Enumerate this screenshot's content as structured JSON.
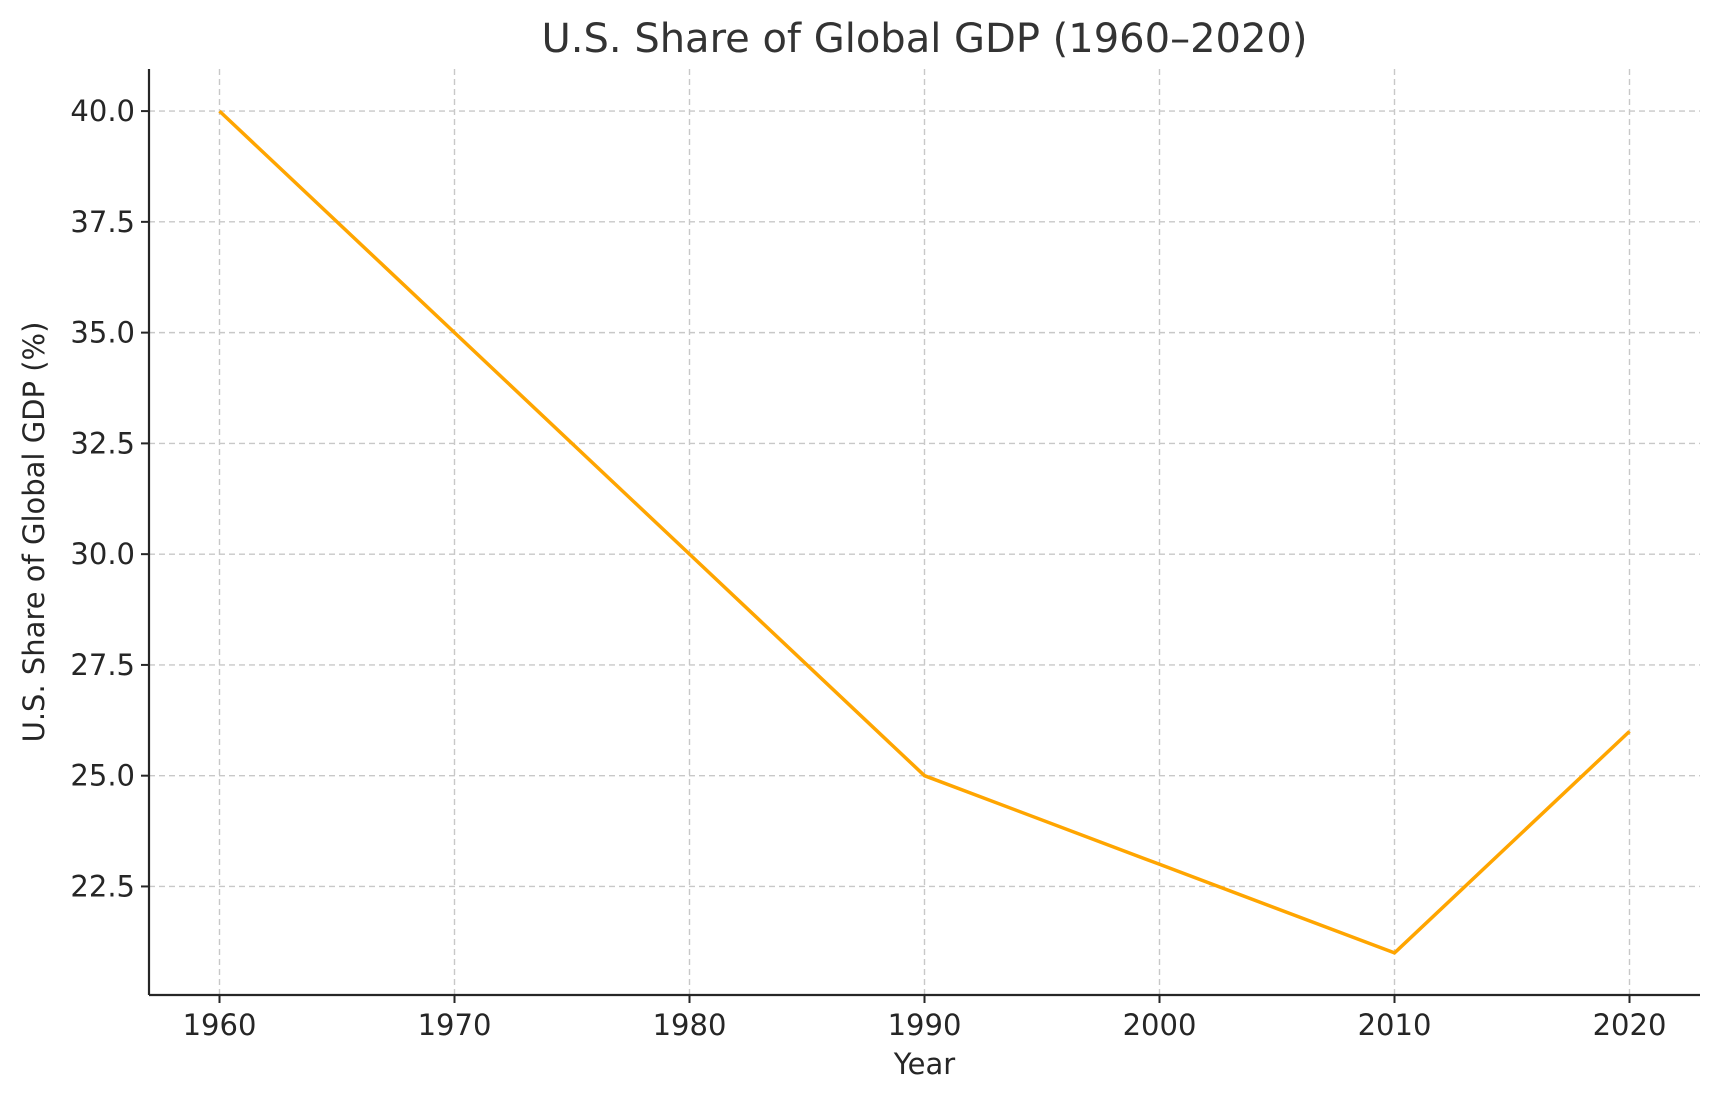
{
  "chart_data": {
    "type": "line",
    "title": "U.S. Share of Global GDP (1960–2020)",
    "xlabel": "Year",
    "ylabel": "U.S. Share of Global GDP (%)",
    "x": [
      1960,
      1970,
      1980,
      1990,
      2000,
      2010,
      2020
    ],
    "series": [
      {
        "name": "U.S. Share of Global GDP (%)",
        "color": "#FFA500",
        "values": [
          40.0,
          35.0,
          30.0,
          25.0,
          23.0,
          21.0,
          26.0
        ]
      }
    ],
    "xticks": [
      "1960",
      "1970",
      "1980",
      "1990",
      "2000",
      "2010",
      "2020"
    ],
    "yticks": [
      "22.5",
      "25.0",
      "27.5",
      "30.0",
      "32.5",
      "35.0",
      "37.5",
      "40.0"
    ],
    "xlim": [
      1957,
      2023
    ],
    "ylim": [
      20.05,
      40.95
    ],
    "grid": true,
    "legend": "none"
  }
}
